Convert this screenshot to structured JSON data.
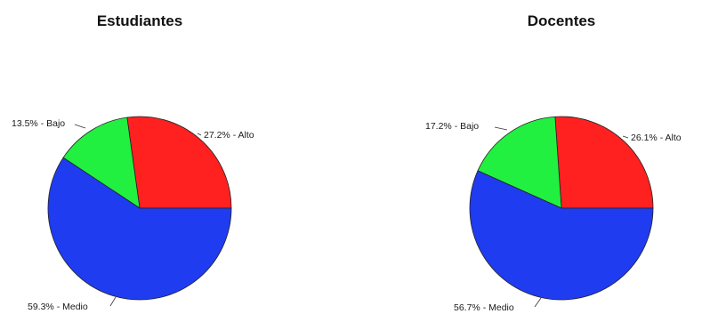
{
  "colors": {
    "Alto": "#ff2020",
    "Bajo": "#22f040",
    "Medio": "#1f3cf0"
  },
  "chart_data": [
    {
      "type": "pie",
      "title": "Estudiantes",
      "slices": [
        {
          "category": "Alto",
          "value": 27.2,
          "label": "27.2% - Alto"
        },
        {
          "category": "Bajo",
          "value": 13.5,
          "label": "13.5% - Bajo"
        },
        {
          "category": "Medio",
          "value": 59.3,
          "label": "59.3% - Medio"
        }
      ]
    },
    {
      "type": "pie",
      "title": "Docentes",
      "slices": [
        {
          "category": "Alto",
          "value": 26.1,
          "label": "26.1% - Alto"
        },
        {
          "category": "Bajo",
          "value": 17.2,
          "label": "17.2% - Bajo"
        },
        {
          "category": "Medio",
          "value": 56.7,
          "label": "56.7% - Medio"
        }
      ]
    }
  ]
}
